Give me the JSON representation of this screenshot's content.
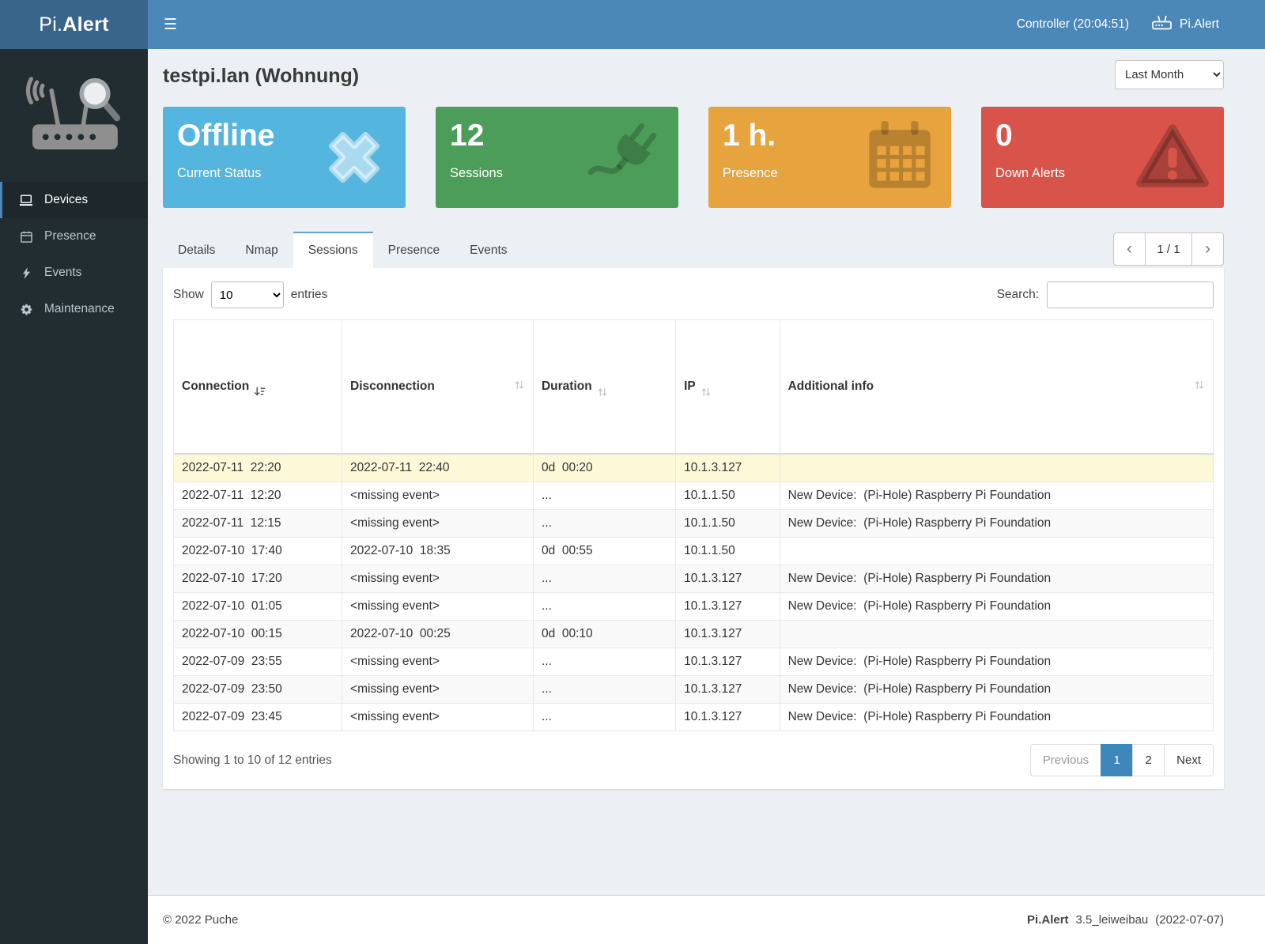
{
  "navbar": {
    "logo_prefix": "Pi.",
    "logo_suffix": "Alert",
    "menu_icon": "☰",
    "controller_label": "Controller (20:04:51)",
    "brand_right": "Pi.Alert"
  },
  "sidebar": {
    "items": [
      {
        "label": "Devices",
        "active": true
      },
      {
        "label": "Presence",
        "active": false
      },
      {
        "label": "Events",
        "active": false
      },
      {
        "label": "Maintenance",
        "active": false
      }
    ]
  },
  "page": {
    "title": "testpi.lan (Wohnung)",
    "period_selected": "Last Month"
  },
  "infoboxes": [
    {
      "value": "Offline",
      "label": "Current Status",
      "color": "#54b5de",
      "icon": "x-icon"
    },
    {
      "value": "12",
      "label": "Sessions",
      "color": "#4d9d5a",
      "icon": "plug-icon"
    },
    {
      "value": "1 h.",
      "label": "Presence",
      "color": "#e7a33d",
      "icon": "calendar-icon"
    },
    {
      "value": "0",
      "label": "Down Alerts",
      "color": "#d8544a",
      "icon": "warning-icon"
    }
  ],
  "tabs": {
    "items": [
      "Details",
      "Nmap",
      "Sessions",
      "Presence",
      "Events"
    ],
    "active": "Sessions"
  },
  "top_pager": {
    "prev_icon": "‹",
    "label": "1 / 1",
    "next_icon": "›"
  },
  "table_controls": {
    "show_label": "Show",
    "page_length": "10",
    "entries_label": "entries",
    "search_label": "Search:",
    "search_value": ""
  },
  "table": {
    "columns": [
      "Connection",
      "Disconnection",
      "Duration",
      "IP",
      "Additional info"
    ],
    "rows": [
      {
        "connection": "2022-07-11  22:20",
        "disconnection": "2022-07-11  22:40",
        "duration": "0d  00:20",
        "ip": "10.1.3.127",
        "info": "",
        "highlight": true
      },
      {
        "connection": "2022-07-11  12:20",
        "disconnection": "<missing event>",
        "duration": "...",
        "ip": "10.1.1.50",
        "info": "New Device:  (Pi-Hole) Raspberry Pi Foundation",
        "highlight": false
      },
      {
        "connection": "2022-07-11  12:15",
        "disconnection": "<missing event>",
        "duration": "...",
        "ip": "10.1.1.50",
        "info": "New Device:  (Pi-Hole) Raspberry Pi Foundation",
        "highlight": false
      },
      {
        "connection": "2022-07-10  17:40",
        "disconnection": "2022-07-10  18:35",
        "duration": "0d  00:55",
        "ip": "10.1.1.50",
        "info": "",
        "highlight": false
      },
      {
        "connection": "2022-07-10  17:20",
        "disconnection": "<missing event>",
        "duration": "...",
        "ip": "10.1.3.127",
        "info": "New Device:  (Pi-Hole) Raspberry Pi Foundation",
        "highlight": false
      },
      {
        "connection": "2022-07-10  01:05",
        "disconnection": "<missing event>",
        "duration": "...",
        "ip": "10.1.3.127",
        "info": "New Device:  (Pi-Hole) Raspberry Pi Foundation",
        "highlight": false
      },
      {
        "connection": "2022-07-10  00:15",
        "disconnection": "2022-07-10  00:25",
        "duration": "0d  00:10",
        "ip": "10.1.3.127",
        "info": "",
        "highlight": false
      },
      {
        "connection": "2022-07-09  23:55",
        "disconnection": "<missing event>",
        "duration": "...",
        "ip": "10.1.3.127",
        "info": "New Device:  (Pi-Hole) Raspberry Pi Foundation",
        "highlight": false
      },
      {
        "connection": "2022-07-09  23:50",
        "disconnection": "<missing event>",
        "duration": "...",
        "ip": "10.1.3.127",
        "info": "New Device:  (Pi-Hole) Raspberry Pi Foundation",
        "highlight": false
      },
      {
        "connection": "2022-07-09  23:45",
        "disconnection": "<missing event>",
        "duration": "...",
        "ip": "10.1.3.127",
        "info": "New Device:  (Pi-Hole) Raspberry Pi Foundation",
        "highlight": false
      }
    ]
  },
  "table_footer": {
    "summary": "Showing 1 to 10 of 12 entries",
    "pagination": {
      "previous": "Previous",
      "pages": [
        "1",
        "2"
      ],
      "next": "Next",
      "current_page": "1"
    }
  },
  "footer": {
    "left": "© 2022 Puche",
    "brand": "Pi.Alert",
    "version": "3.5_leiweibau",
    "date": "(2022-07-07)"
  }
}
